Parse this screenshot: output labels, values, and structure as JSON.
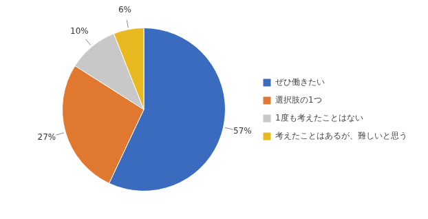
{
  "chart_data": {
    "type": "pie",
    "categories": [
      "ぜひ働きたい",
      "選択肢の1つ",
      "1度も考えたことはない",
      "考えたことはあるが、難しいと思う"
    ],
    "values": [
      57,
      27,
      10,
      6
    ],
    "colors": [
      "#3A6BBF",
      "#E07830",
      "#C8C8C8",
      "#E8B820"
    ],
    "data_labels": true,
    "value_labels": [
      "57%",
      "27%",
      "10%",
      "6%"
    ],
    "legend": "right"
  }
}
